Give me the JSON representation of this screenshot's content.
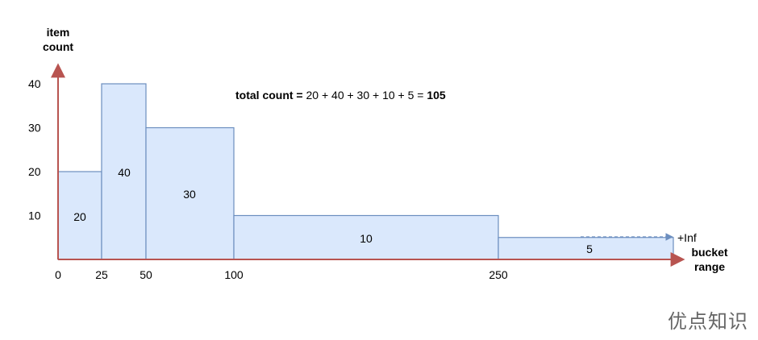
{
  "chart_data": {
    "type": "bar",
    "ylabel": "item\ncount",
    "xlabel": "bucket\nrange",
    "annotation": {
      "prefix": "total count = ",
      "expression": "20 + 40 + 30 + 10 + 5 = ",
      "total": "105"
    },
    "y_ticks": [
      10,
      20,
      30,
      40
    ],
    "x_ticks": [
      "0",
      "25",
      "50",
      "100",
      "250"
    ],
    "overflow_label": "+Inf",
    "buckets": [
      {
        "start": 0,
        "end": 25,
        "value": 20,
        "label": "20"
      },
      {
        "start": 25,
        "end": 50,
        "value": 40,
        "label": "40"
      },
      {
        "start": 50,
        "end": 100,
        "value": 30,
        "label": "30"
      },
      {
        "start": 100,
        "end": 250,
        "value": 10,
        "label": "10"
      },
      {
        "start": 250,
        "end": "+Inf",
        "value": 5,
        "label": "5"
      }
    ],
    "colors": {
      "bar_fill": "#dae8fc",
      "bar_stroke": "#6c8ebf",
      "axis": "#b85450"
    }
  },
  "watermark": "优点知识"
}
